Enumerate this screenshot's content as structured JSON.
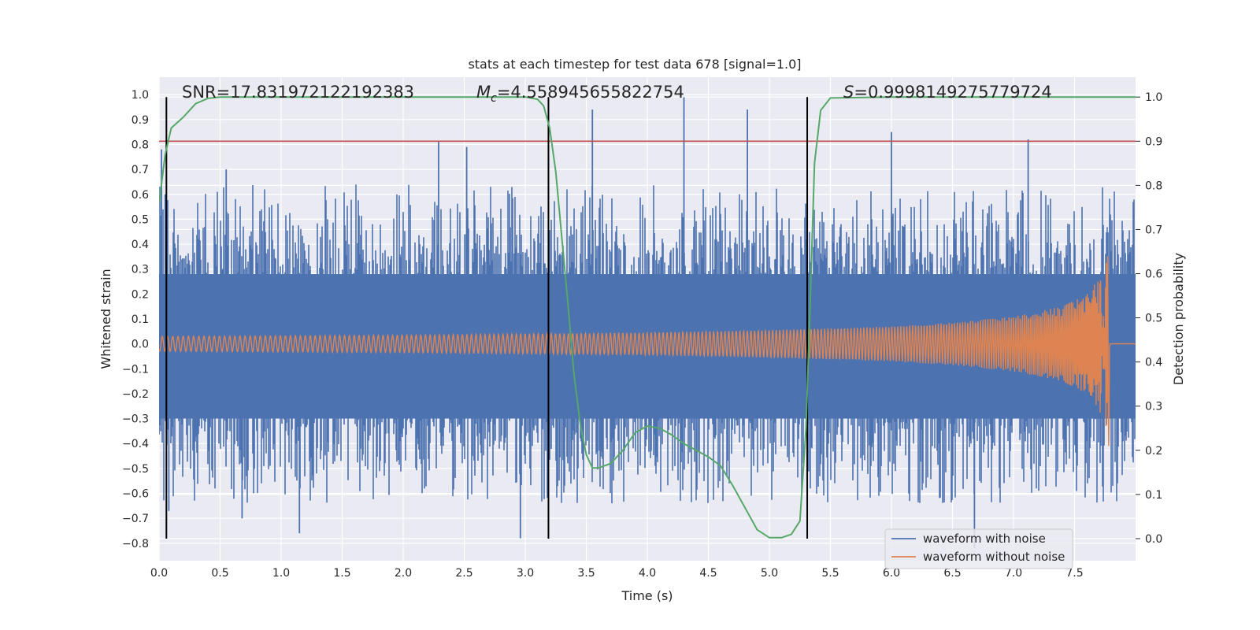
{
  "chart_data": {
    "type": "line",
    "title": "stats at each timestep for test data 678 [signal=1.0]",
    "xlabel": "Time (s)",
    "ylabel": "Whitened strain",
    "ylabel_right": "Detection probability",
    "xlim": [
      0.0,
      8.0
    ],
    "ylim": [
      -0.87,
      1.07
    ],
    "ylim_right": [
      -0.05,
      1.045
    ],
    "xticks": [
      "0.0",
      "0.5",
      "1.0",
      "1.5",
      "2.0",
      "2.5",
      "3.0",
      "3.5",
      "4.0",
      "4.5",
      "5.0",
      "5.5",
      "6.0",
      "6.5",
      "7.0",
      "7.5"
    ],
    "yticks": [
      "1.0",
      "0.9",
      "0.8",
      "0.7",
      "0.6",
      "0.5",
      "0.4",
      "0.3",
      "0.2",
      "0.1",
      "0.0",
      "−0.1",
      "−0.2",
      "−0.3",
      "−0.4",
      "−0.5",
      "−0.6",
      "−0.7",
      "−0.8"
    ],
    "yticks_right": [
      "1.0",
      "0.9",
      "0.8",
      "0.7",
      "0.6",
      "0.5",
      "0.4",
      "0.3",
      "0.2",
      "0.1",
      "0.0"
    ],
    "grid": true,
    "legend_position": "lower-right",
    "annotations": {
      "snr": "SNR=17.831972122192383",
      "mc_symbol": "M",
      "mc_sub": "c",
      "mc_value": "=4.558945655822754",
      "s_symbol": "S",
      "s_value": "=0.9998149275779724"
    },
    "vertical_lines_x": [
      0.06,
      3.19,
      5.31
    ],
    "threshold_right": 0.9,
    "series": [
      {
        "name": "waveform with noise",
        "color": "#4c72b0",
        "description_values": "noise envelope, typical |amplitude| about 0.45, peaks up to 0.99",
        "peaks": [
          {
            "x": 0.02,
            "y": 0.78
          },
          {
            "x": 0.05,
            "y": 0.6
          },
          {
            "x": 0.08,
            "y": -0.67
          },
          {
            "x": 0.55,
            "y": 0.7
          },
          {
            "x": 0.68,
            "y": -0.7
          },
          {
            "x": 1.15,
            "y": -0.76
          },
          {
            "x": 2.29,
            "y": 0.81
          },
          {
            "x": 2.52,
            "y": 0.79
          },
          {
            "x": 2.96,
            "y": -0.78
          },
          {
            "x": 3.55,
            "y": 0.94
          },
          {
            "x": 4.3,
            "y": 0.99
          },
          {
            "x": 4.82,
            "y": 0.94
          },
          {
            "x": 6.0,
            "y": 0.85
          },
          {
            "x": 7.12,
            "y": 0.82
          },
          {
            "x": 6.68,
            "y": -0.82
          }
        ]
      },
      {
        "name": "waveform without noise",
        "color": "#dd8452",
        "description_values": "chirp, envelope grows from about 0.03 to peak near 0.41 at 7.78 s then 0",
        "envelope": [
          {
            "x": 0.0,
            "y": 0.03
          },
          {
            "x": 2.0,
            "y": 0.035
          },
          {
            "x": 4.0,
            "y": 0.045
          },
          {
            "x": 5.0,
            "y": 0.055
          },
          {
            "x": 6.0,
            "y": 0.07
          },
          {
            "x": 6.5,
            "y": 0.085
          },
          {
            "x": 7.0,
            "y": 0.11
          },
          {
            "x": 7.4,
            "y": 0.15
          },
          {
            "x": 7.6,
            "y": 0.2
          },
          {
            "x": 7.7,
            "y": 0.26
          },
          {
            "x": 7.76,
            "y": 0.35
          },
          {
            "x": 7.78,
            "y": 0.41
          },
          {
            "x": 7.79,
            "y": 0.0
          },
          {
            "x": 8.0,
            "y": 0.0
          }
        ]
      },
      {
        "name": "detection probability",
        "color": "#55a868",
        "axis": "right",
        "points": [
          [
            0.0,
            0.76
          ],
          [
            0.05,
            0.87
          ],
          [
            0.1,
            0.93
          ],
          [
            0.2,
            0.955
          ],
          [
            0.3,
            0.985
          ],
          [
            0.4,
            0.997
          ],
          [
            0.5,
            1.0
          ],
          [
            2.0,
            1.0
          ],
          [
            3.0,
            1.0
          ],
          [
            3.1,
            0.995
          ],
          [
            3.15,
            0.98
          ],
          [
            3.2,
            0.93
          ],
          [
            3.25,
            0.83
          ],
          [
            3.3,
            0.68
          ],
          [
            3.35,
            0.53
          ],
          [
            3.4,
            0.37
          ],
          [
            3.45,
            0.26
          ],
          [
            3.5,
            0.19
          ],
          [
            3.55,
            0.16
          ],
          [
            3.6,
            0.16
          ],
          [
            3.7,
            0.17
          ],
          [
            3.8,
            0.2
          ],
          [
            3.9,
            0.24
          ],
          [
            4.0,
            0.255
          ],
          [
            4.1,
            0.25
          ],
          [
            4.2,
            0.235
          ],
          [
            4.3,
            0.215
          ],
          [
            4.4,
            0.2
          ],
          [
            4.5,
            0.185
          ],
          [
            4.6,
            0.165
          ],
          [
            4.7,
            0.12
          ],
          [
            4.8,
            0.07
          ],
          [
            4.9,
            0.02
          ],
          [
            5.0,
            0.002
          ],
          [
            5.1,
            0.002
          ],
          [
            5.18,
            0.01
          ],
          [
            5.25,
            0.04
          ],
          [
            5.3,
            0.25
          ],
          [
            5.33,
            0.5
          ],
          [
            5.37,
            0.85
          ],
          [
            5.42,
            0.97
          ],
          [
            5.5,
            0.998
          ],
          [
            6.0,
            1.0
          ],
          [
            8.0,
            1.0
          ]
        ]
      }
    ]
  }
}
